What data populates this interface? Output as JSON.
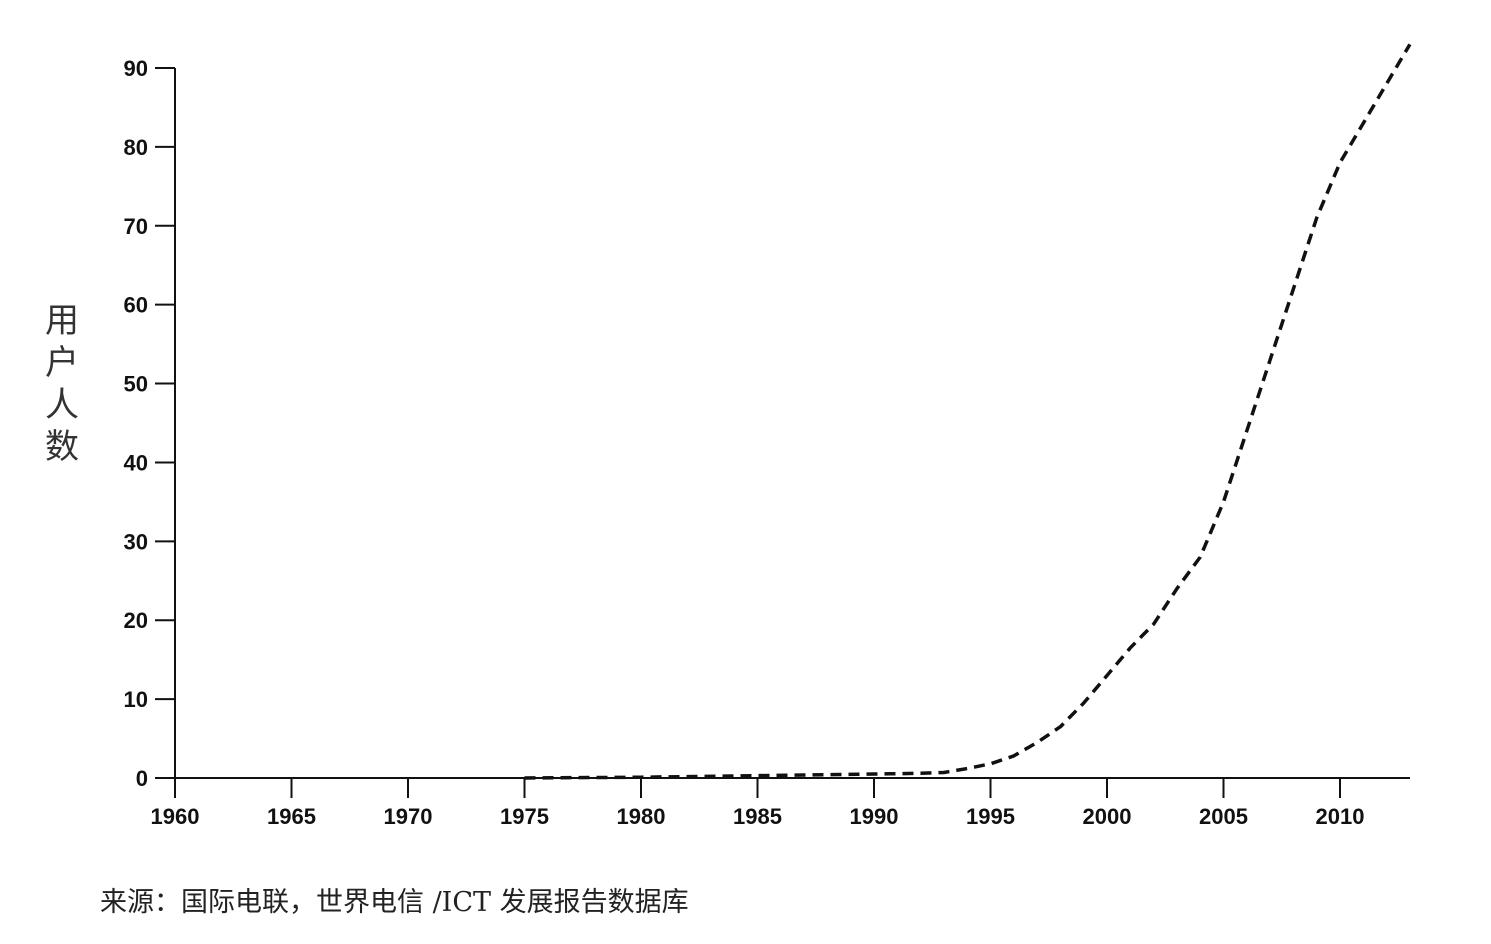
{
  "chart_data": {
    "type": "line",
    "ylabel": "用户人数",
    "xlabel": "",
    "title": "",
    "xlim": [
      1960,
      2013
    ],
    "ylim": [
      0,
      90
    ],
    "x_ticks": [
      "1960",
      "1965",
      "1970",
      "1975",
      "1980",
      "1985",
      "1990",
      "1995",
      "2000",
      "2005",
      "2010"
    ],
    "y_ticks": [
      "0",
      "10",
      "20",
      "30",
      "40",
      "50",
      "60",
      "70",
      "80",
      "90"
    ],
    "grid": false,
    "line_style": "dashed",
    "line_color": "#111111",
    "series": [
      {
        "x": [
          1975,
          1980,
          1985,
          1990,
          1992,
          1993,
          1994,
          1995,
          1996,
          1997,
          1998,
          1999,
          2000,
          2001,
          2002,
          2003,
          2004,
          2005,
          2006,
          2007,
          2008,
          2009,
          2010,
          2011,
          2012,
          2013
        ],
        "values": [
          0,
          0.1,
          0.3,
          0.5,
          0.6,
          0.7,
          1.2,
          1.8,
          2.8,
          4.5,
          6.5,
          9.5,
          13,
          16.5,
          19.5,
          24,
          28,
          35,
          44,
          53,
          62,
          71,
          78,
          83,
          88,
          93
        ]
      }
    ]
  },
  "source_text": "来源：国际电联，世界电信 /ICT 发展报告数据库"
}
